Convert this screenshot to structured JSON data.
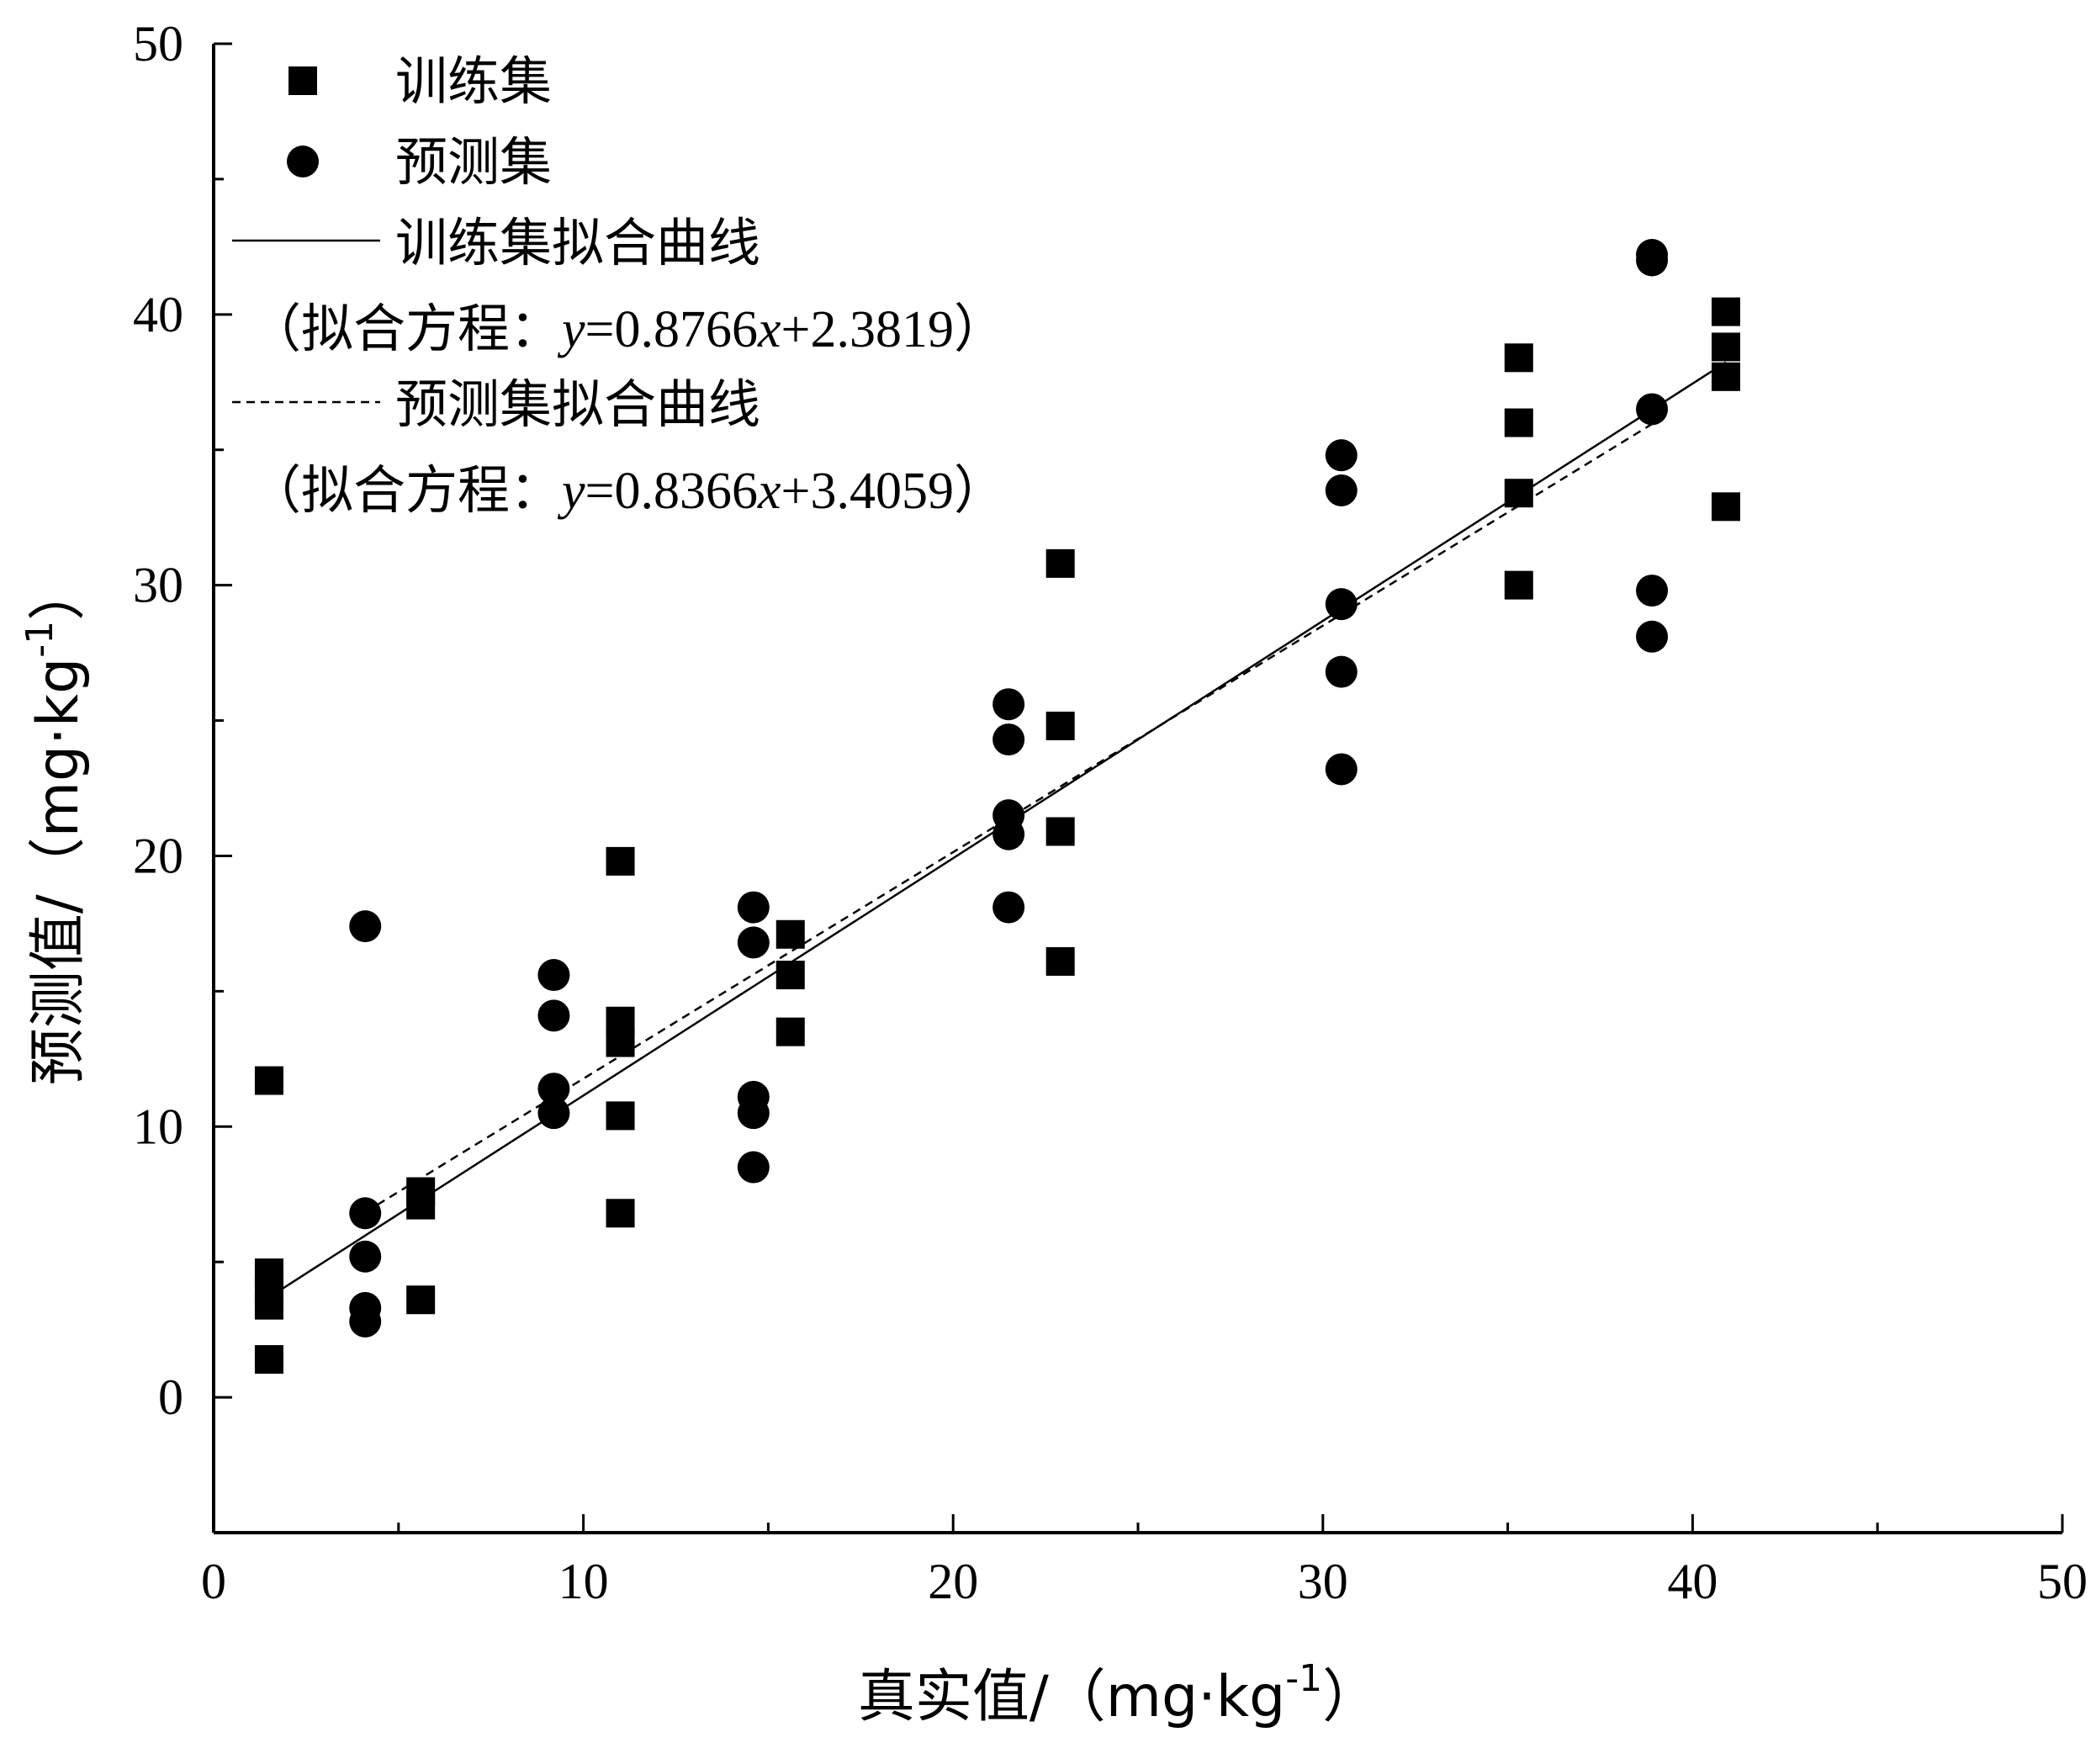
{
  "chart_data": {
    "type": "scatter",
    "xlabel": "真实值/（mg·kg",
    "xlabel_sup": "-1",
    "xlabel_close": "）",
    "ylabel": "预测值/（mg·kg",
    "ylabel_sup": "-1",
    "ylabel_close": "）",
    "xlim": [
      0,
      50
    ],
    "ylim": [
      -5,
      50
    ],
    "xticks": [
      0,
      10,
      20,
      30,
      40,
      50
    ],
    "yticks": [
      0,
      10,
      20,
      30,
      40,
      50
    ],
    "legend_placement": "top-left",
    "series": [
      {
        "name": "训练集",
        "marker": "square",
        "color": "#000000",
        "points": [
          [
            1.5,
            11.7
          ],
          [
            1.5,
            4.6
          ],
          [
            1.5,
            4.0
          ],
          [
            1.5,
            3.4
          ],
          [
            1.5,
            1.4
          ],
          [
            5.6,
            7.6
          ],
          [
            5.6,
            7.1
          ],
          [
            5.6,
            3.6
          ],
          [
            11.0,
            19.8
          ],
          [
            11.0,
            13.9
          ],
          [
            11.0,
            13.1
          ],
          [
            11.0,
            10.4
          ],
          [
            11.0,
            6.8
          ],
          [
            15.6,
            17.1
          ],
          [
            15.6,
            15.6
          ],
          [
            15.6,
            13.5
          ],
          [
            22.9,
            30.8
          ],
          [
            22.9,
            24.8
          ],
          [
            22.9,
            20.9
          ],
          [
            22.9,
            16.1
          ],
          [
            35.3,
            38.4
          ],
          [
            35.3,
            36.0
          ],
          [
            35.3,
            33.4
          ],
          [
            35.3,
            30.0
          ],
          [
            40.9,
            40.1
          ],
          [
            40.9,
            38.8
          ],
          [
            40.9,
            37.7
          ],
          [
            40.9,
            32.9
          ]
        ]
      },
      {
        "name": "预测集",
        "marker": "circle",
        "color": "#000000",
        "points": [
          [
            4.1,
            17.4
          ],
          [
            4.1,
            6.8
          ],
          [
            4.1,
            5.2
          ],
          [
            4.1,
            3.3
          ],
          [
            4.1,
            2.8
          ],
          [
            9.2,
            15.6
          ],
          [
            9.2,
            14.1
          ],
          [
            9.2,
            11.4
          ],
          [
            9.2,
            10.5
          ],
          [
            14.6,
            18.1
          ],
          [
            14.6,
            16.8
          ],
          [
            14.6,
            11.1
          ],
          [
            14.6,
            10.5
          ],
          [
            14.6,
            8.5
          ],
          [
            21.5,
            25.6
          ],
          [
            21.5,
            24.3
          ],
          [
            21.5,
            21.5
          ],
          [
            21.5,
            20.8
          ],
          [
            21.5,
            18.1
          ],
          [
            30.5,
            34.8
          ],
          [
            30.5,
            33.5
          ],
          [
            30.5,
            29.3
          ],
          [
            30.5,
            26.8
          ],
          [
            30.5,
            23.2
          ],
          [
            38.9,
            42.2
          ],
          [
            38.9,
            42.0
          ],
          [
            38.9,
            36.5
          ],
          [
            38.9,
            29.8
          ],
          [
            38.9,
            28.1
          ]
        ]
      }
    ],
    "fit_lines": [
      {
        "name": "训练集拟合曲线",
        "style": "solid",
        "slope": 0.8766,
        "intercept": 2.3819,
        "x_range": [
          1.5,
          40.9
        ],
        "equation_prefix": "（拟合方程：",
        "equation_y": "y",
        "equation_mid": "=0.8766",
        "equation_x": "x",
        "equation_suffix": "+2.3819）"
      },
      {
        "name": "预测集拟合曲线",
        "style": "dashed",
        "slope": 0.8366,
        "intercept": 3.4059,
        "x_range": [
          4.1,
          38.9
        ],
        "equation_prefix": "（拟合方程：",
        "equation_y": "y",
        "equation_mid": "=0.8366",
        "equation_x": "x",
        "equation_suffix": "+3.4059）"
      }
    ]
  }
}
